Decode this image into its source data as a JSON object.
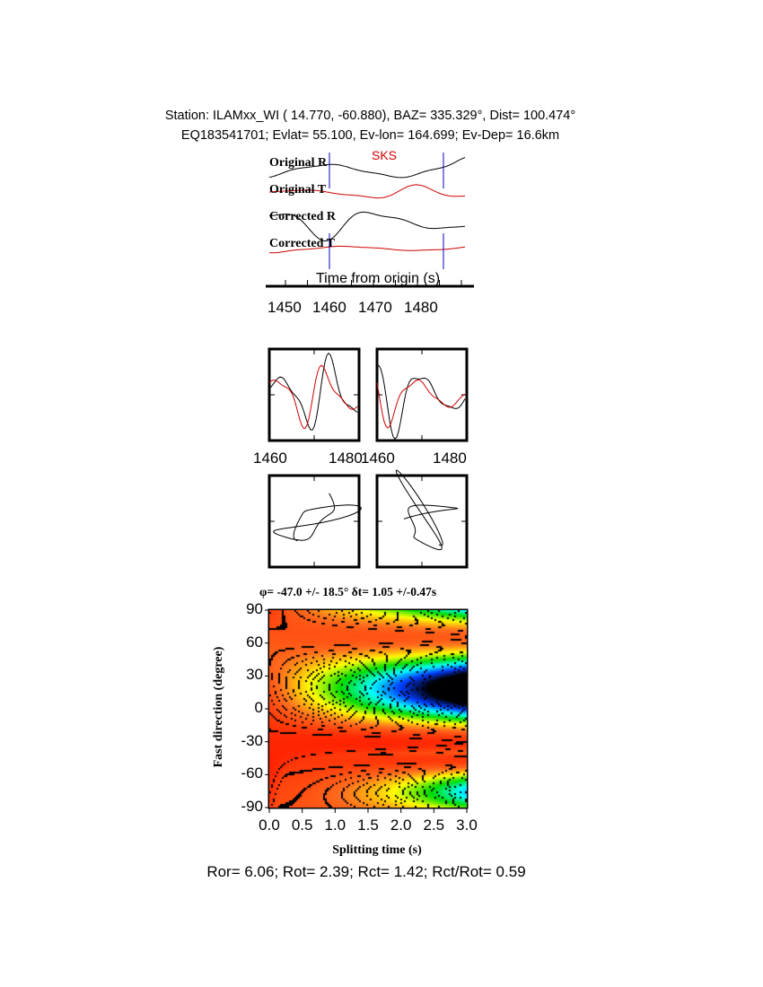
{
  "header": {
    "line1": "Station: ILAMxx_WI (  14.770,  -60.880), BAZ=  335.329°, Dist=  100.474°",
    "line2": "EQ183541701; Evlat=  55.100, Ev-lon= 164.699; Ev-Dep= 16.6km"
  },
  "traces": {
    "phase": "SKS",
    "labels": [
      "Original R",
      "Original T",
      "Corrected R",
      "Corrected T"
    ],
    "xlabel": "Time from origin (s)",
    "xticks": [
      "1450",
      "1460",
      "1470",
      "1480"
    ],
    "window": [
      1460,
      1486
    ],
    "colors": {
      "radial": "#000000",
      "transverse": "#d00000",
      "window": "#0000c0"
    }
  },
  "waveform_panels": {
    "left_xticks": [
      "1460",
      "1480"
    ],
    "right_xticks": [
      "1460",
      "1480"
    ]
  },
  "chart_data": {
    "type": "heatmap",
    "title": "φ= -47.0 +/- 18.5° δt= 1.05 +/-0.47s",
    "xlabel": "Splitting time (s)",
    "ylabel": "Fast direction (degree)",
    "xlim": [
      0,
      3
    ],
    "ylim": [
      -90,
      90
    ],
    "xticks": [
      "0.0",
      "0.5",
      "1.0",
      "1.5",
      "2.0",
      "2.5",
      "3.0"
    ],
    "yticks": [
      "90",
      "60",
      "30",
      "0",
      "-30",
      "-60",
      "-90"
    ],
    "contour_labels": [
      "0.2",
      "0.4",
      "0.2",
      "0.4",
      "0.2",
      "0.4",
      "0.2",
      "0.2",
      "0.4"
    ],
    "best": {
      "phi": -47.0,
      "dt": 1.05,
      "marker": "star"
    },
    "colormap": [
      "#ff2000",
      "#ff7020",
      "#ffff00",
      "#00e000",
      "#00ffff",
      "#0040ff",
      "#000000"
    ]
  },
  "footer": "Ror= 6.06; Rot= 2.39; Rct= 1.42; Rct/Rot= 0.59"
}
